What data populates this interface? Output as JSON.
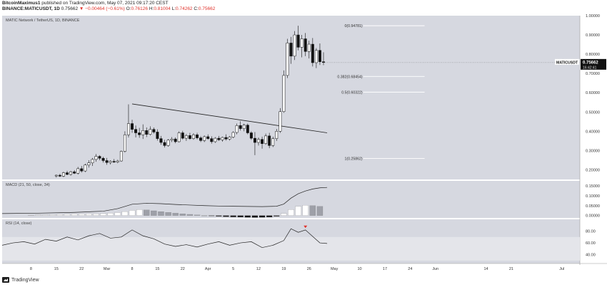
{
  "header": {
    "line1_user": "BitcoinMaximus1",
    "line1_rest": "published on TradingView.com, May 07, 2021 09:17:20 CEST",
    "line2_symbol": "BINANCE:MATICUSDT, 1D",
    "line2_price": "0.75662",
    "line2_change": "▼ −0.00464 (−0.61%)",
    "line2_o": "O:",
    "line2_o_val": "0.76126",
    "line2_h": "H:",
    "line2_h_val": "0.81004",
    "line2_l": "L:",
    "line2_l_val": "0.74262",
    "line2_c": "C:",
    "line2_c_val": "0.75662"
  },
  "chart_title": "MATIC Network / TetherUS, 1D, BINANCE",
  "symbol_label": "MATICUSDT",
  "last_price_label": "0.75662",
  "countdown_label": "16:42:41",
  "colors": {
    "pane_bg": "#d6d8e0",
    "candle_up": "#ffffff",
    "candle_down": "#111111",
    "wick": "#111111",
    "fib_line": "#ffffff",
    "rsi_line": "#222222",
    "rsi_band": "#e4e5ea",
    "macd_pos_up": "#ffffff",
    "macd_pos_down": "#9ea0a8",
    "macd_neg": "#111111",
    "arrow": "#e0322b"
  },
  "footer": {
    "brand": "TradingView",
    "logo_icon": "tradingview-logo-icon"
  },
  "chart_data": [
    {
      "type": "candlestick",
      "title": "MATIC Network / TetherUS, 1D, BINANCE",
      "ylim": [
        0.15,
        1.0
      ],
      "y_ticks": [
        1.0,
        0.9,
        0.8,
        0.7,
        0.6,
        0.5,
        0.4,
        0.3,
        0.2
      ],
      "y_tick_labels": [
        "1.00000",
        "0.90000",
        "0.80000",
        "0.70000",
        "0.60000",
        "0.50000",
        "0.40000",
        "0.30000",
        "0.20000"
      ],
      "x_range_days": [
        0,
        160
      ],
      "x_ticks": [
        {
          "day": 8,
          "label": "8"
        },
        {
          "day": 15,
          "label": "15"
        },
        {
          "day": 22,
          "label": "22"
        },
        {
          "day": 29,
          "label": "Mar"
        },
        {
          "day": 36,
          "label": "8"
        },
        {
          "day": 43,
          "label": "15"
        },
        {
          "day": 50,
          "label": "22"
        },
        {
          "day": 57,
          "label": "Apr"
        },
        {
          "day": 64,
          "label": "5"
        },
        {
          "day": 71,
          "label": "12"
        },
        {
          "day": 78,
          "label": "19"
        },
        {
          "day": 85,
          "label": "26"
        },
        {
          "day": 92,
          "label": "May"
        },
        {
          "day": 99,
          "label": "10"
        },
        {
          "day": 106,
          "label": "17"
        },
        {
          "day": 113,
          "label": "24"
        },
        {
          "day": 120,
          "label": "Jun"
        },
        {
          "day": 134,
          "label": "14"
        },
        {
          "day": 141,
          "label": "21"
        },
        {
          "day": 155,
          "label": "Jul"
        }
      ],
      "candles": [
        {
          "d": 15,
          "o": 0.168,
          "h": 0.176,
          "l": 0.16,
          "c": 0.172
        },
        {
          "d": 16,
          "o": 0.172,
          "h": 0.179,
          "l": 0.163,
          "c": 0.167
        },
        {
          "d": 17,
          "o": 0.167,
          "h": 0.19,
          "l": 0.162,
          "c": 0.185
        },
        {
          "d": 18,
          "o": 0.185,
          "h": 0.195,
          "l": 0.172,
          "c": 0.176
        },
        {
          "d": 19,
          "o": 0.176,
          "h": 0.195,
          "l": 0.17,
          "c": 0.19
        },
        {
          "d": 20,
          "o": 0.19,
          "h": 0.198,
          "l": 0.178,
          "c": 0.182
        },
        {
          "d": 21,
          "o": 0.182,
          "h": 0.215,
          "l": 0.176,
          "c": 0.206
        },
        {
          "d": 22,
          "o": 0.206,
          "h": 0.22,
          "l": 0.186,
          "c": 0.194
        },
        {
          "d": 23,
          "o": 0.194,
          "h": 0.232,
          "l": 0.188,
          "c": 0.225
        },
        {
          "d": 24,
          "o": 0.225,
          "h": 0.25,
          "l": 0.212,
          "c": 0.236
        },
        {
          "d": 25,
          "o": 0.236,
          "h": 0.262,
          "l": 0.22,
          "c": 0.254
        },
        {
          "d": 26,
          "o": 0.254,
          "h": 0.282,
          "l": 0.242,
          "c": 0.27
        },
        {
          "d": 27,
          "o": 0.27,
          "h": 0.276,
          "l": 0.25,
          "c": 0.26
        },
        {
          "d": 28,
          "o": 0.26,
          "h": 0.268,
          "l": 0.238,
          "c": 0.248
        },
        {
          "d": 29,
          "o": 0.248,
          "h": 0.262,
          "l": 0.226,
          "c": 0.238
        },
        {
          "d": 30,
          "o": 0.238,
          "h": 0.25,
          "l": 0.228,
          "c": 0.244
        },
        {
          "d": 31,
          "o": 0.244,
          "h": 0.256,
          "l": 0.236,
          "c": 0.24
        },
        {
          "d": 32,
          "o": 0.24,
          "h": 0.252,
          "l": 0.234,
          "c": 0.246
        },
        {
          "d": 33,
          "o": 0.246,
          "h": 0.3,
          "l": 0.242,
          "c": 0.296
        },
        {
          "d": 34,
          "o": 0.296,
          "h": 0.4,
          "l": 0.29,
          "c": 0.382
        },
        {
          "d": 35,
          "o": 0.382,
          "h": 0.54,
          "l": 0.368,
          "c": 0.44
        },
        {
          "d": 36,
          "o": 0.44,
          "h": 0.46,
          "l": 0.392,
          "c": 0.41
        },
        {
          "d": 37,
          "o": 0.41,
          "h": 0.43,
          "l": 0.368,
          "c": 0.392
        },
        {
          "d": 38,
          "o": 0.392,
          "h": 0.418,
          "l": 0.366,
          "c": 0.382
        },
        {
          "d": 39,
          "o": 0.382,
          "h": 0.436,
          "l": 0.36,
          "c": 0.404
        },
        {
          "d": 40,
          "o": 0.404,
          "h": 0.42,
          "l": 0.37,
          "c": 0.384
        },
        {
          "d": 41,
          "o": 0.384,
          "h": 0.426,
          "l": 0.378,
          "c": 0.41
        },
        {
          "d": 42,
          "o": 0.41,
          "h": 0.42,
          "l": 0.388,
          "c": 0.396
        },
        {
          "d": 43,
          "o": 0.396,
          "h": 0.41,
          "l": 0.352,
          "c": 0.362
        },
        {
          "d": 44,
          "o": 0.362,
          "h": 0.376,
          "l": 0.33,
          "c": 0.342
        },
        {
          "d": 45,
          "o": 0.342,
          "h": 0.356,
          "l": 0.316,
          "c": 0.326
        },
        {
          "d": 46,
          "o": 0.326,
          "h": 0.36,
          "l": 0.32,
          "c": 0.354
        },
        {
          "d": 47,
          "o": 0.354,
          "h": 0.37,
          "l": 0.344,
          "c": 0.36
        },
        {
          "d": 48,
          "o": 0.36,
          "h": 0.368,
          "l": 0.338,
          "c": 0.346
        },
        {
          "d": 49,
          "o": 0.346,
          "h": 0.4,
          "l": 0.342,
          "c": 0.392
        },
        {
          "d": 50,
          "o": 0.392,
          "h": 0.402,
          "l": 0.358,
          "c": 0.364
        },
        {
          "d": 51,
          "o": 0.364,
          "h": 0.386,
          "l": 0.35,
          "c": 0.378
        },
        {
          "d": 52,
          "o": 0.378,
          "h": 0.392,
          "l": 0.356,
          "c": 0.362
        },
        {
          "d": 53,
          "o": 0.362,
          "h": 0.39,
          "l": 0.356,
          "c": 0.382
        },
        {
          "d": 54,
          "o": 0.382,
          "h": 0.392,
          "l": 0.358,
          "c": 0.366
        },
        {
          "d": 55,
          "o": 0.366,
          "h": 0.374,
          "l": 0.344,
          "c": 0.352
        },
        {
          "d": 56,
          "o": 0.352,
          "h": 0.378,
          "l": 0.344,
          "c": 0.372
        },
        {
          "d": 57,
          "o": 0.372,
          "h": 0.384,
          "l": 0.356,
          "c": 0.362
        },
        {
          "d": 58,
          "o": 0.362,
          "h": 0.374,
          "l": 0.336,
          "c": 0.346
        },
        {
          "d": 59,
          "o": 0.346,
          "h": 0.37,
          "l": 0.34,
          "c": 0.364
        },
        {
          "d": 60,
          "o": 0.364,
          "h": 0.376,
          "l": 0.35,
          "c": 0.356
        },
        {
          "d": 61,
          "o": 0.356,
          "h": 0.372,
          "l": 0.346,
          "c": 0.368
        },
        {
          "d": 62,
          "o": 0.368,
          "h": 0.384,
          "l": 0.352,
          "c": 0.36
        },
        {
          "d": 63,
          "o": 0.36,
          "h": 0.376,
          "l": 0.352,
          "c": 0.37
        },
        {
          "d": 64,
          "o": 0.37,
          "h": 0.4,
          "l": 0.364,
          "c": 0.394
        },
        {
          "d": 65,
          "o": 0.394,
          "h": 0.44,
          "l": 0.384,
          "c": 0.43
        },
        {
          "d": 66,
          "o": 0.43,
          "h": 0.452,
          "l": 0.404,
          "c": 0.414
        },
        {
          "d": 67,
          "o": 0.414,
          "h": 0.44,
          "l": 0.4,
          "c": 0.432
        },
        {
          "d": 68,
          "o": 0.432,
          "h": 0.44,
          "l": 0.384,
          "c": 0.392
        },
        {
          "d": 69,
          "o": 0.392,
          "h": 0.4,
          "l": 0.356,
          "c": 0.364
        },
        {
          "d": 70,
          "o": 0.364,
          "h": 0.396,
          "l": 0.276,
          "c": 0.342
        },
        {
          "d": 71,
          "o": 0.342,
          "h": 0.368,
          "l": 0.326,
          "c": 0.358
        },
        {
          "d": 72,
          "o": 0.358,
          "h": 0.372,
          "l": 0.31,
          "c": 0.336
        },
        {
          "d": 73,
          "o": 0.336,
          "h": 0.388,
          "l": 0.33,
          "c": 0.376
        },
        {
          "d": 74,
          "o": 0.376,
          "h": 0.392,
          "l": 0.312,
          "c": 0.326
        },
        {
          "d": 75,
          "o": 0.326,
          "h": 0.372,
          "l": 0.318,
          "c": 0.362
        },
        {
          "d": 76,
          "o": 0.362,
          "h": 0.412,
          "l": 0.35,
          "c": 0.4
        },
        {
          "d": 77,
          "o": 0.4,
          "h": 0.52,
          "l": 0.392,
          "c": 0.502
        },
        {
          "d": 78,
          "o": 0.502,
          "h": 0.716,
          "l": 0.496,
          "c": 0.69
        },
        {
          "d": 79,
          "o": 0.69,
          "h": 0.88,
          "l": 0.676,
          "c": 0.858
        },
        {
          "d": 80,
          "o": 0.858,
          "h": 0.89,
          "l": 0.75,
          "c": 0.79
        },
        {
          "d": 81,
          "o": 0.79,
          "h": 0.92,
          "l": 0.77,
          "c": 0.9
        },
        {
          "d": 82,
          "o": 0.9,
          "h": 0.948,
          "l": 0.82,
          "c": 0.836
        },
        {
          "d": 83,
          "o": 0.836,
          "h": 0.9,
          "l": 0.784,
          "c": 0.88
        },
        {
          "d": 84,
          "o": 0.88,
          "h": 0.91,
          "l": 0.79,
          "c": 0.814
        },
        {
          "d": 85,
          "o": 0.814,
          "h": 0.87,
          "l": 0.778,
          "c": 0.852
        },
        {
          "d": 86,
          "o": 0.852,
          "h": 0.884,
          "l": 0.736,
          "c": 0.756
        },
        {
          "d": 87,
          "o": 0.756,
          "h": 0.832,
          "l": 0.728,
          "c": 0.82
        },
        {
          "d": 88,
          "o": 0.82,
          "h": 0.856,
          "l": 0.744,
          "c": 0.761
        },
        {
          "d": 89,
          "o": 0.761,
          "h": 0.81,
          "l": 0.743,
          "c": 0.757
        }
      ],
      "trendline": [
        {
          "d": 36,
          "v": 0.542
        },
        {
          "d": 90,
          "v": 0.392
        }
      ],
      "fib_levels": [
        {
          "label": "0(0.94781)",
          "value": 0.94781
        },
        {
          "label": "0.382(0.68454)",
          "value": 0.68454
        },
        {
          "label": "0.5(0.60322)",
          "value": 0.60322
        },
        {
          "label": "1(0.25862)",
          "value": 0.25862
        }
      ],
      "last_price": 0.75662
    },
    {
      "type": "bar",
      "title": "MACD (21, 50, close, 34)",
      "ylim": [
        -0.012,
        0.175
      ],
      "y_ticks": [
        0.15,
        0.1,
        0.05,
        0.0
      ],
      "y_tick_labels": [
        "0.15000",
        "0.10000",
        "0.05000",
        "0.00000"
      ],
      "macd_line_days": [
        0,
        10,
        20,
        28,
        32,
        36,
        40,
        44,
        48,
        52,
        56,
        60,
        64,
        68,
        72,
        76,
        78,
        80,
        82,
        84,
        86,
        88,
        90
      ],
      "macd_line": [
        0.01,
        0.012,
        0.016,
        0.022,
        0.035,
        0.057,
        0.062,
        0.06,
        0.056,
        0.053,
        0.05,
        0.048,
        0.047,
        0.046,
        0.045,
        0.047,
        0.058,
        0.088,
        0.11,
        0.124,
        0.134,
        0.14,
        0.142
      ],
      "histogram_days": [
        8,
        10,
        12,
        14,
        16,
        18,
        20,
        22,
        24,
        26,
        28,
        30,
        32,
        34,
        36,
        38,
        40,
        42,
        44,
        46,
        48,
        50,
        52,
        54,
        56,
        58,
        60,
        62,
        64,
        66,
        68,
        70,
        72,
        74,
        76,
        78,
        80,
        82,
        84,
        86,
        88
      ],
      "histogram": [
        0.002,
        0.003,
        0.004,
        0.005,
        0.006,
        0.007,
        0.008,
        0.008,
        0.009,
        0.009,
        0.01,
        0.012,
        0.015,
        0.02,
        0.026,
        0.03,
        0.028,
        0.024,
        0.02,
        0.016,
        0.012,
        0.009,
        0.006,
        0.003,
        0.0,
        -0.002,
        -0.004,
        -0.006,
        -0.007,
        -0.008,
        -0.009,
        -0.01,
        -0.009,
        -0.008,
        -0.004,
        0.01,
        0.03,
        0.046,
        0.052,
        0.05,
        0.046
      ]
    },
    {
      "type": "line",
      "title": "RSI (14, close)",
      "ylim": [
        25,
        100
      ],
      "y_ticks": [
        80,
        60,
        40
      ],
      "y_tick_labels": [
        "80.00",
        "60.00",
        "40.00"
      ],
      "band": [
        30,
        70
      ],
      "x": [
        0,
        3,
        6,
        9,
        12,
        15,
        18,
        21,
        24,
        27,
        30,
        33,
        36,
        39,
        42,
        45,
        48,
        51,
        54,
        57,
        60,
        63,
        66,
        69,
        72,
        75,
        78,
        80,
        82,
        84,
        86,
        88,
        90
      ],
      "values": [
        56,
        60,
        62,
        58,
        66,
        63,
        70,
        65,
        72,
        76,
        68,
        70,
        82,
        72,
        67,
        58,
        54,
        57,
        53,
        58,
        62,
        56,
        60,
        62,
        52,
        56,
        64,
        84,
        78,
        82,
        71,
        60,
        59
      ],
      "sell_marker": {
        "d": 84,
        "v": 87
      }
    }
  ]
}
